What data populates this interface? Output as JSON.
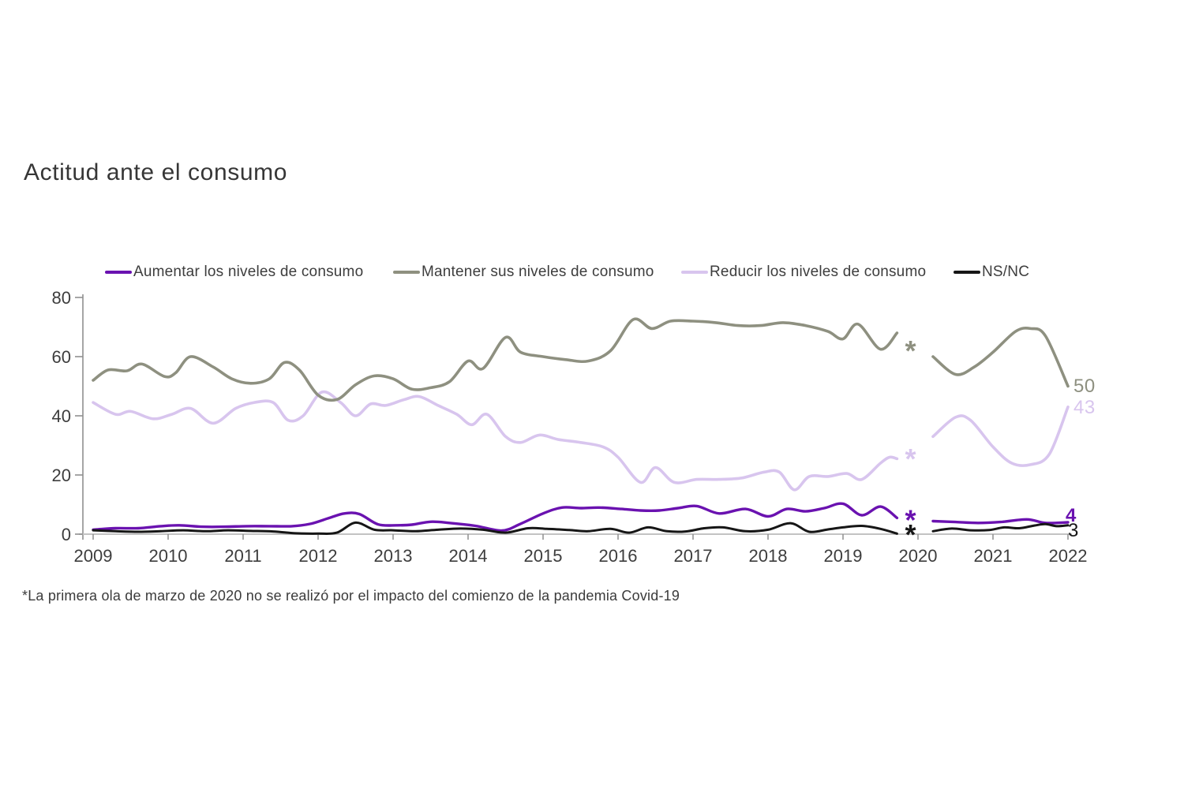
{
  "title": "Actitud ante el consumo",
  "footnote": "*La primera ola de marzo de 2020 no se realizó por el impacto del comienzo de la pandemia Covid-19",
  "colors": {
    "title_text": "#363636",
    "tick_label": "#3d3d3d",
    "y_axis_line": "#8f8f8f",
    "x_axis_line": "#c3c3c3",
    "background": "#ffffff"
  },
  "chart_data": {
    "type": "line",
    "title": "Actitud ante el consumo",
    "xlabel": "",
    "ylabel": "",
    "x_axis": {
      "ticks": [
        2009,
        2010,
        2011,
        2012,
        2013,
        2014,
        2015,
        2016,
        2017,
        2018,
        2019,
        2020,
        2021,
        2022
      ]
    },
    "y_axis": {
      "ticks": [
        0,
        20,
        40,
        60,
        80
      ],
      "range": [
        0,
        80
      ]
    },
    "grid": false,
    "legend_position": "top",
    "gap": {
      "from": 2019.75,
      "to": 2020.2,
      "reason_marker": "*"
    },
    "series": [
      {
        "id": "aumentar",
        "name": "Aumentar los niveles de consumo",
        "color": "#6a12b0",
        "stroke_width": 3.4,
        "end_label": "4",
        "gap_marker": {
          "x": 2019.9,
          "y": 6.3,
          "symbol": "*"
        },
        "segments": [
          [
            [
              2009,
              1.5
            ],
            [
              2009.3,
              2
            ],
            [
              2009.6,
              2
            ],
            [
              2009.9,
              2.7
            ],
            [
              2010.15,
              3
            ],
            [
              2010.45,
              2.5
            ],
            [
              2010.75,
              2.5
            ],
            [
              2011.05,
              2.7
            ],
            [
              2011.35,
              2.7
            ],
            [
              2011.65,
              2.7
            ],
            [
              2011.9,
              3.5
            ],
            [
              2012.15,
              5.5
            ],
            [
              2012.35,
              7
            ],
            [
              2012.55,
              6.8
            ],
            [
              2012.8,
              3.3
            ],
            [
              2013.05,
              3
            ],
            [
              2013.25,
              3.2
            ],
            [
              2013.5,
              4.2
            ],
            [
              2013.75,
              3.8
            ],
            [
              2014.1,
              2.8
            ],
            [
              2014.45,
              1.2
            ],
            [
              2014.7,
              3.5
            ],
            [
              2015,
              7
            ],
            [
              2015.25,
              9
            ],
            [
              2015.5,
              8.8
            ],
            [
              2015.75,
              9
            ],
            [
              2016.05,
              8.5
            ],
            [
              2016.3,
              8
            ],
            [
              2016.55,
              8
            ],
            [
              2016.8,
              8.8
            ],
            [
              2017.05,
              9.5
            ],
            [
              2017.35,
              7
            ],
            [
              2017.7,
              8.5
            ],
            [
              2018,
              6
            ],
            [
              2018.25,
              8.5
            ],
            [
              2018.5,
              7.7
            ],
            [
              2018.75,
              8.8
            ],
            [
              2019,
              10.3
            ],
            [
              2019.25,
              6.4
            ],
            [
              2019.5,
              9.3
            ],
            [
              2019.72,
              5.5
            ]
          ],
          [
            [
              2020.2,
              4.4
            ],
            [
              2020.5,
              4.1
            ],
            [
              2020.8,
              3.8
            ],
            [
              2021.1,
              4.1
            ],
            [
              2021.45,
              5
            ],
            [
              2021.7,
              3.8
            ],
            [
              2022,
              4
            ]
          ]
        ]
      },
      {
        "id": "mantener",
        "name": "Mantener sus niveles de consumo",
        "color": "#8e9080",
        "stroke_width": 3.6,
        "end_label": "50",
        "gap_marker": {
          "x": 2019.9,
          "y": 63.5,
          "symbol": "*"
        },
        "segments": [
          [
            [
              2009,
              52
            ],
            [
              2009.2,
              55.5
            ],
            [
              2009.45,
              55.2
            ],
            [
              2009.65,
              57.5
            ],
            [
              2009.95,
              53.3
            ],
            [
              2010.1,
              54.5
            ],
            [
              2010.3,
              60
            ],
            [
              2010.6,
              56.5
            ],
            [
              2010.85,
              52.5
            ],
            [
              2011.1,
              51
            ],
            [
              2011.35,
              52.5
            ],
            [
              2011.55,
              58
            ],
            [
              2011.75,
              55.5
            ],
            [
              2012,
              47
            ],
            [
              2012.25,
              45.5
            ],
            [
              2012.5,
              50.5
            ],
            [
              2012.75,
              53.5
            ],
            [
              2013,
              52.5
            ],
            [
              2013.25,
              49
            ],
            [
              2013.5,
              49.5
            ],
            [
              2013.75,
              51.5
            ],
            [
              2014,
              58.5
            ],
            [
              2014.2,
              56
            ],
            [
              2014.5,
              66.5
            ],
            [
              2014.7,
              61.5
            ],
            [
              2015,
              60
            ],
            [
              2015.3,
              59
            ],
            [
              2015.6,
              58.5
            ],
            [
              2015.9,
              62
            ],
            [
              2016.2,
              72.5
            ],
            [
              2016.45,
              69.5
            ],
            [
              2016.7,
              72
            ],
            [
              2017,
              72
            ],
            [
              2017.3,
              71.5
            ],
            [
              2017.6,
              70.5
            ],
            [
              2017.9,
              70.5
            ],
            [
              2018.2,
              71.5
            ],
            [
              2018.5,
              70.5
            ],
            [
              2018.8,
              68.5
            ],
            [
              2019,
              66
            ],
            [
              2019.2,
              71
            ],
            [
              2019.5,
              62.5
            ],
            [
              2019.72,
              68
            ]
          ],
          [
            [
              2020.2,
              60
            ],
            [
              2020.5,
              54
            ],
            [
              2020.75,
              56.5
            ],
            [
              2021,
              61.5
            ],
            [
              2021.3,
              68.5
            ],
            [
              2021.5,
              69.5
            ],
            [
              2021.7,
              67
            ],
            [
              2022,
              50
            ]
          ]
        ]
      },
      {
        "id": "reducir",
        "name": "Reducir los niveles de consumo",
        "color": "#d8c5ee",
        "stroke_width": 3.6,
        "end_label": "43",
        "gap_marker": {
          "x": 2019.9,
          "y": 27,
          "symbol": "*"
        },
        "segments": [
          [
            [
              2009,
              44.5
            ],
            [
              2009.3,
              40.5
            ],
            [
              2009.5,
              41.5
            ],
            [
              2009.8,
              39
            ],
            [
              2010.05,
              40.5
            ],
            [
              2010.3,
              42.5
            ],
            [
              2010.6,
              37.5
            ],
            [
              2010.9,
              42.5
            ],
            [
              2011.15,
              44.5
            ],
            [
              2011.4,
              44.5
            ],
            [
              2011.6,
              38.5
            ],
            [
              2011.8,
              40
            ],
            [
              2012.05,
              48
            ],
            [
              2012.3,
              44.5
            ],
            [
              2012.5,
              40
            ],
            [
              2012.7,
              44
            ],
            [
              2012.9,
              43.5
            ],
            [
              2013.15,
              45.5
            ],
            [
              2013.35,
              46.5
            ],
            [
              2013.6,
              43.5
            ],
            [
              2013.85,
              40.5
            ],
            [
              2014.05,
              37
            ],
            [
              2014.25,
              40.5
            ],
            [
              2014.5,
              33
            ],
            [
              2014.7,
              31
            ],
            [
              2014.95,
              33.5
            ],
            [
              2015.2,
              32
            ],
            [
              2015.5,
              31
            ],
            [
              2015.8,
              29.5
            ],
            [
              2016,
              26
            ],
            [
              2016.3,
              17.5
            ],
            [
              2016.5,
              22.5
            ],
            [
              2016.75,
              17.5
            ],
            [
              2017.05,
              18.5
            ],
            [
              2017.35,
              18.5
            ],
            [
              2017.65,
              19
            ],
            [
              2017.95,
              21
            ],
            [
              2018.15,
              21
            ],
            [
              2018.35,
              15
            ],
            [
              2018.55,
              19.5
            ],
            [
              2018.8,
              19.5
            ],
            [
              2019.05,
              20.5
            ],
            [
              2019.25,
              18.5
            ],
            [
              2019.5,
              24
            ],
            [
              2019.62,
              26
            ],
            [
              2019.72,
              25.5
            ]
          ],
          [
            [
              2020.2,
              33
            ],
            [
              2020.5,
              39.5
            ],
            [
              2020.7,
              38.5
            ],
            [
              2021,
              29.5
            ],
            [
              2021.25,
              24
            ],
            [
              2021.5,
              23.5
            ],
            [
              2021.75,
              27
            ],
            [
              2022,
              43
            ]
          ]
        ]
      },
      {
        "id": "nsnc",
        "name": "NS/NC",
        "color": "#161616",
        "stroke_width": 3,
        "end_label": "3",
        "gap_marker": {
          "x": 2019.9,
          "y": 1.3,
          "symbol": "*"
        },
        "segments": [
          [
            [
              2009,
              1.3
            ],
            [
              2009.3,
              1
            ],
            [
              2009.6,
              0.8
            ],
            [
              2009.9,
              1
            ],
            [
              2010.2,
              1.3
            ],
            [
              2010.5,
              1
            ],
            [
              2010.8,
              1.3
            ],
            [
              2011.1,
              1.1
            ],
            [
              2011.4,
              0.9
            ],
            [
              2011.7,
              0.3
            ],
            [
              2012,
              0.2
            ],
            [
              2012.25,
              0.5
            ],
            [
              2012.5,
              3.9
            ],
            [
              2012.75,
              1.5
            ],
            [
              2013,
              1.3
            ],
            [
              2013.3,
              1
            ],
            [
              2013.6,
              1.5
            ],
            [
              2013.9,
              1.9
            ],
            [
              2014.2,
              1.5
            ],
            [
              2014.5,
              0.5
            ],
            [
              2014.8,
              2
            ],
            [
              2015.05,
              1.8
            ],
            [
              2015.35,
              1.4
            ],
            [
              2015.6,
              1
            ],
            [
              2015.9,
              1.8
            ],
            [
              2016.15,
              0.5
            ],
            [
              2016.4,
              2.3
            ],
            [
              2016.65,
              1
            ],
            [
              2016.9,
              0.9
            ],
            [
              2017.15,
              2
            ],
            [
              2017.4,
              2.3
            ],
            [
              2017.7,
              1
            ],
            [
              2018,
              1.5
            ],
            [
              2018.3,
              3.7
            ],
            [
              2018.55,
              0.8
            ],
            [
              2018.8,
              1.6
            ],
            [
              2019,
              2.3
            ],
            [
              2019.25,
              2.8
            ],
            [
              2019.5,
              1.8
            ],
            [
              2019.72,
              0.2
            ]
          ],
          [
            [
              2020.2,
              1
            ],
            [
              2020.45,
              1.9
            ],
            [
              2020.7,
              1.3
            ],
            [
              2020.95,
              1.4
            ],
            [
              2021.15,
              2.3
            ],
            [
              2021.35,
              2
            ],
            [
              2021.55,
              2.9
            ],
            [
              2021.7,
              3.4
            ],
            [
              2021.85,
              2.7
            ],
            [
              2022,
              3
            ]
          ]
        ]
      }
    ]
  }
}
